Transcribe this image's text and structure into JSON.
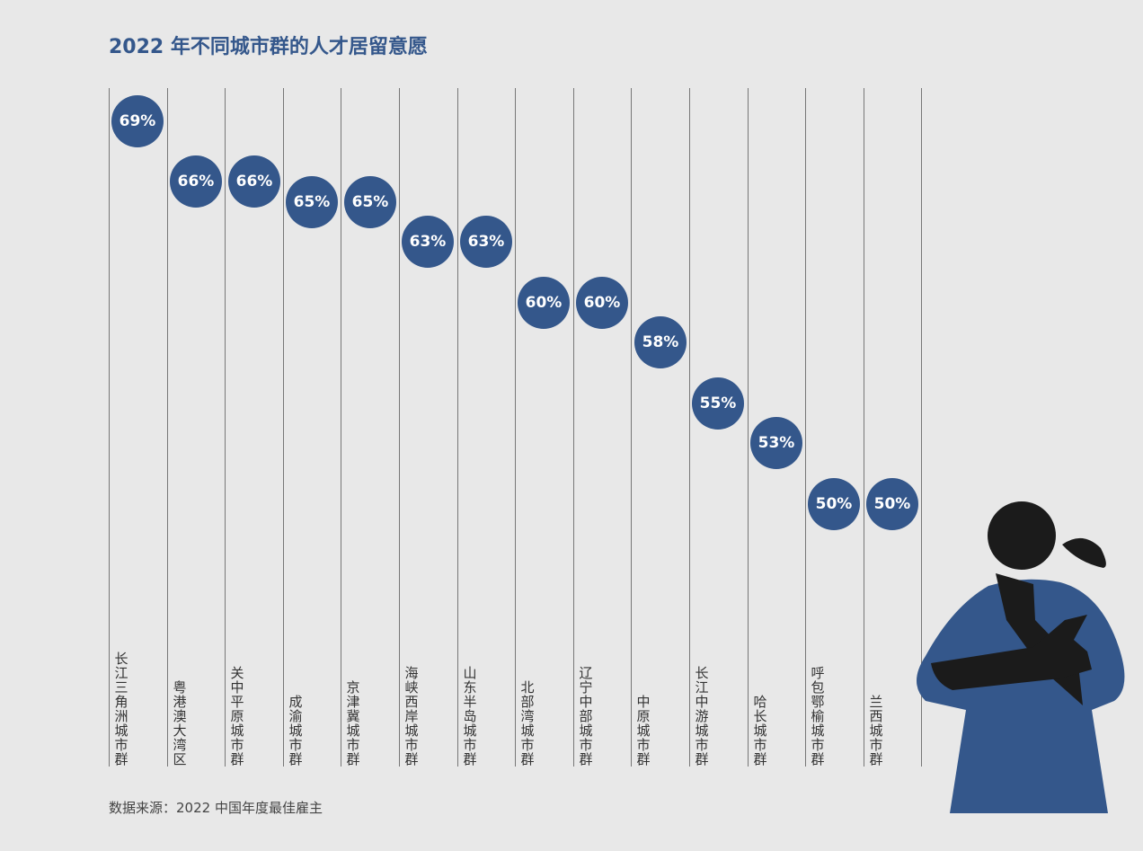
{
  "title": "2022 年不同城市群的人才居留意愿",
  "source": "数据来源：2022 中国年度最佳雇主",
  "colors": {
    "accent": "#34578b",
    "figure_dark": "#1b1b1b"
  },
  "chart_data": {
    "type": "scatter",
    "title": "2022 年不同城市群的人才居留意愿",
    "categories": [
      "长江三角洲城市群",
      "粤港澳大湾区",
      "关中平原城市群",
      "成渝城市群",
      "京津冀城市群",
      "海峡西岸城市群",
      "山东半岛城市群",
      "北部湾城市群",
      "辽宁中部城市群",
      "中原城市群",
      "长江中游城市群",
      "哈长城市群",
      "呼包鄂榆城市群",
      "兰西城市群"
    ],
    "values": [
      69,
      66,
      66,
      65,
      65,
      63,
      63,
      60,
      60,
      58,
      55,
      53,
      50,
      50
    ],
    "labels": [
      "69%",
      "66%",
      "66%",
      "65%",
      "65%",
      "63%",
      "63%",
      "60%",
      "60%",
      "58%",
      "55%",
      "53%",
      "50%",
      "50%"
    ],
    "unit": "%",
    "ylim": [
      50,
      69
    ]
  }
}
